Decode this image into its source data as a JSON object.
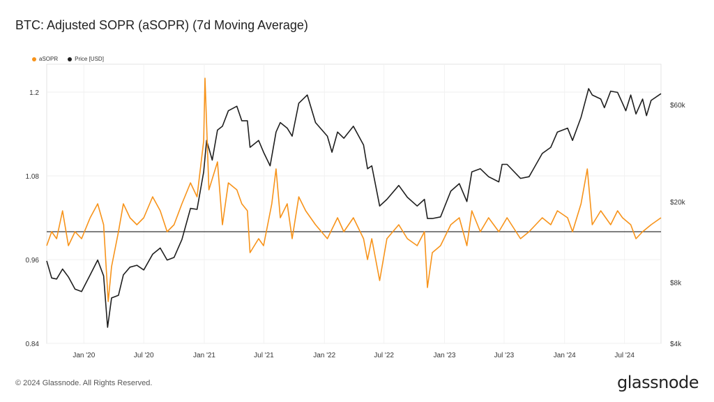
{
  "header": {
    "title": "BTC: Adjusted SOPR (aSOPR) (7d Moving Average)"
  },
  "legend": [
    {
      "label": "aSOPR",
      "color": "#f7931a"
    },
    {
      "label": "Price [USD]",
      "color": "#1e1e1e"
    }
  ],
  "footer": {
    "copyright": "© 2024 Glassnode. All Rights Reserved.",
    "brand": "glassnode"
  },
  "chart_data": {
    "type": "line",
    "title": "BTC: Adjusted SOPR (aSOPR) (7d Moving Average)",
    "x_tick_labels": [
      "Jan '20",
      "Jul '20",
      "Jan '21",
      "Jul '21",
      "Jan '22",
      "Jul '22",
      "Jan '23",
      "Jul '23",
      "Jan '24",
      "Jul '24"
    ],
    "x_tick_dates": [
      "2020-01-01",
      "2020-07-01",
      "2021-01-01",
      "2021-07-01",
      "2022-01-01",
      "2022-07-01",
      "2023-01-01",
      "2023-07-01",
      "2024-01-01",
      "2024-07-01"
    ],
    "xlim": [
      "2019-09-10",
      "2024-10-20"
    ],
    "y_left": {
      "ylim": [
        0.84,
        1.24
      ],
      "ticks": [
        0.84,
        0.96,
        1.08,
        1.2
      ],
      "tick_labels": [
        "0.84",
        "0.96",
        "1.08",
        "1.2"
      ]
    },
    "y_right": {
      "scale": "log",
      "ylim": [
        4000,
        95000
      ],
      "ticks": [
        4000,
        8000,
        20000,
        60000
      ],
      "tick_labels": [
        "$4k",
        "$8k",
        "$20k",
        "$60k"
      ]
    },
    "reference_line": {
      "axis": "left",
      "y": 1.0,
      "color": "#333333"
    },
    "grid": true,
    "legend_position": "top-left",
    "series": [
      {
        "name": "aSOPR",
        "axis": "left",
        "color": "#f7931a",
        "points": [
          [
            "2019-09-10",
            0.98
          ],
          [
            "2019-09-25",
            1.0
          ],
          [
            "2019-10-10",
            0.99
          ],
          [
            "2019-10-28",
            1.03
          ],
          [
            "2019-11-15",
            0.98
          ],
          [
            "2019-12-05",
            1.0
          ],
          [
            "2019-12-25",
            0.99
          ],
          [
            "2020-01-20",
            1.02
          ],
          [
            "2020-02-12",
            1.04
          ],
          [
            "2020-03-01",
            1.01
          ],
          [
            "2020-03-15",
            0.9
          ],
          [
            "2020-03-25",
            0.95
          ],
          [
            "2020-04-15",
            1.0
          ],
          [
            "2020-04-30",
            1.04
          ],
          [
            "2020-05-20",
            1.02
          ],
          [
            "2020-06-10",
            1.01
          ],
          [
            "2020-07-01",
            1.02
          ],
          [
            "2020-07-28",
            1.05
          ],
          [
            "2020-08-20",
            1.03
          ],
          [
            "2020-09-10",
            1.0
          ],
          [
            "2020-10-01",
            1.01
          ],
          [
            "2020-10-25",
            1.04
          ],
          [
            "2020-11-20",
            1.07
          ],
          [
            "2020-12-10",
            1.05
          ],
          [
            "2020-12-30",
            1.13
          ],
          [
            "2021-01-03",
            1.22
          ],
          [
            "2021-01-15",
            1.06
          ],
          [
            "2021-02-10",
            1.1
          ],
          [
            "2021-02-25",
            1.01
          ],
          [
            "2021-03-15",
            1.07
          ],
          [
            "2021-04-10",
            1.06
          ],
          [
            "2021-04-25",
            1.04
          ],
          [
            "2021-05-12",
            1.03
          ],
          [
            "2021-05-20",
            0.97
          ],
          [
            "2021-06-15",
            0.99
          ],
          [
            "2021-06-30",
            0.98
          ],
          [
            "2021-07-25",
            1.04
          ],
          [
            "2021-08-07",
            1.09
          ],
          [
            "2021-08-20",
            1.02
          ],
          [
            "2021-09-10",
            1.04
          ],
          [
            "2021-09-25",
            0.99
          ],
          [
            "2021-10-15",
            1.05
          ],
          [
            "2021-11-05",
            1.03
          ],
          [
            "2021-12-05",
            1.01
          ],
          [
            "2022-01-10",
            0.99
          ],
          [
            "2022-02-10",
            1.02
          ],
          [
            "2022-03-01",
            1.0
          ],
          [
            "2022-03-30",
            1.02
          ],
          [
            "2022-04-30",
            0.99
          ],
          [
            "2022-05-12",
            0.96
          ],
          [
            "2022-05-25",
            0.99
          ],
          [
            "2022-06-18",
            0.93
          ],
          [
            "2022-07-10",
            0.99
          ],
          [
            "2022-08-15",
            1.01
          ],
          [
            "2022-09-10",
            0.99
          ],
          [
            "2022-10-10",
            0.98
          ],
          [
            "2022-11-01",
            1.0
          ],
          [
            "2022-11-10",
            0.92
          ],
          [
            "2022-11-25",
            0.97
          ],
          [
            "2022-12-20",
            0.98
          ],
          [
            "2023-01-20",
            1.01
          ],
          [
            "2023-02-15",
            1.02
          ],
          [
            "2023-03-10",
            0.98
          ],
          [
            "2023-03-25",
            1.03
          ],
          [
            "2023-04-20",
            1.0
          ],
          [
            "2023-05-15",
            1.02
          ],
          [
            "2023-06-15",
            1.0
          ],
          [
            "2023-07-10",
            1.02
          ],
          [
            "2023-08-20",
            0.99
          ],
          [
            "2023-09-15",
            1.0
          ],
          [
            "2023-10-25",
            1.02
          ],
          [
            "2023-11-20",
            1.01
          ],
          [
            "2023-12-10",
            1.03
          ],
          [
            "2024-01-10",
            1.02
          ],
          [
            "2024-01-25",
            1.0
          ],
          [
            "2024-02-20",
            1.04
          ],
          [
            "2024-03-10",
            1.09
          ],
          [
            "2024-03-25",
            1.01
          ],
          [
            "2024-04-20",
            1.03
          ],
          [
            "2024-05-20",
            1.01
          ],
          [
            "2024-06-10",
            1.03
          ],
          [
            "2024-06-25",
            1.02
          ],
          [
            "2024-07-20",
            1.01
          ],
          [
            "2024-08-05",
            0.99
          ],
          [
            "2024-08-25",
            1.0
          ],
          [
            "2024-09-20",
            1.01
          ],
          [
            "2024-10-20",
            1.02
          ]
        ]
      },
      {
        "name": "Price [USD]",
        "axis": "right",
        "color": "#1e1e1e",
        "points": [
          [
            "2019-09-10",
            10200
          ],
          [
            "2019-09-25",
            8400
          ],
          [
            "2019-10-10",
            8300
          ],
          [
            "2019-10-28",
            9300
          ],
          [
            "2019-11-15",
            8500
          ],
          [
            "2019-12-05",
            7400
          ],
          [
            "2019-12-25",
            7200
          ],
          [
            "2020-01-20",
            8700
          ],
          [
            "2020-02-12",
            10300
          ],
          [
            "2020-03-01",
            8600
          ],
          [
            "2020-03-13",
            4800
          ],
          [
            "2020-03-25",
            6700
          ],
          [
            "2020-04-15",
            6900
          ],
          [
            "2020-04-30",
            8700
          ],
          [
            "2020-05-20",
            9500
          ],
          [
            "2020-06-10",
            9700
          ],
          [
            "2020-07-01",
            9200
          ],
          [
            "2020-07-28",
            11000
          ],
          [
            "2020-08-20",
            11800
          ],
          [
            "2020-09-10",
            10300
          ],
          [
            "2020-10-01",
            10600
          ],
          [
            "2020-10-25",
            13000
          ],
          [
            "2020-11-20",
            18500
          ],
          [
            "2020-12-10",
            18300
          ],
          [
            "2020-12-30",
            28000
          ],
          [
            "2021-01-08",
            40000
          ],
          [
            "2021-01-25",
            32000
          ],
          [
            "2021-02-10",
            45000
          ],
          [
            "2021-02-25",
            47000
          ],
          [
            "2021-03-15",
            56000
          ],
          [
            "2021-04-10",
            59000
          ],
          [
            "2021-04-25",
            50000
          ],
          [
            "2021-05-12",
            50000
          ],
          [
            "2021-05-20",
            37000
          ],
          [
            "2021-06-15",
            40000
          ],
          [
            "2021-06-30",
            35000
          ],
          [
            "2021-07-20",
            30000
          ],
          [
            "2021-08-07",
            44000
          ],
          [
            "2021-08-20",
            49000
          ],
          [
            "2021-09-10",
            46000
          ],
          [
            "2021-09-25",
            42000
          ],
          [
            "2021-10-15",
            61000
          ],
          [
            "2021-11-10",
            67000
          ],
          [
            "2021-12-05",
            49000
          ],
          [
            "2022-01-10",
            42000
          ],
          [
            "2022-01-24",
            35000
          ],
          [
            "2022-02-10",
            44000
          ],
          [
            "2022-03-01",
            41000
          ],
          [
            "2022-03-30",
            47000
          ],
          [
            "2022-04-30",
            38000
          ],
          [
            "2022-05-12",
            29000
          ],
          [
            "2022-05-25",
            30000
          ],
          [
            "2022-06-18",
            19000
          ],
          [
            "2022-07-10",
            20500
          ],
          [
            "2022-08-15",
            24000
          ],
          [
            "2022-09-10",
            21000
          ],
          [
            "2022-10-10",
            19000
          ],
          [
            "2022-11-01",
            20500
          ],
          [
            "2022-11-10",
            16500
          ],
          [
            "2022-11-25",
            16500
          ],
          [
            "2022-12-20",
            16800
          ],
          [
            "2023-01-20",
            22500
          ],
          [
            "2023-02-15",
            24500
          ],
          [
            "2023-03-10",
            20000
          ],
          [
            "2023-03-25",
            28000
          ],
          [
            "2023-04-20",
            29000
          ],
          [
            "2023-05-15",
            26500
          ],
          [
            "2023-06-15",
            25000
          ],
          [
            "2023-06-25",
            30500
          ],
          [
            "2023-07-10",
            30500
          ],
          [
            "2023-08-20",
            26000
          ],
          [
            "2023-09-15",
            26500
          ],
          [
            "2023-10-25",
            34500
          ],
          [
            "2023-11-20",
            37000
          ],
          [
            "2023-12-10",
            44000
          ],
          [
            "2024-01-10",
            46000
          ],
          [
            "2024-01-25",
            40000
          ],
          [
            "2024-02-20",
            52000
          ],
          [
            "2024-03-14",
            72000
          ],
          [
            "2024-03-25",
            67000
          ],
          [
            "2024-04-20",
            64000
          ],
          [
            "2024-05-01",
            58000
          ],
          [
            "2024-05-20",
            70000
          ],
          [
            "2024-06-10",
            69000
          ],
          [
            "2024-06-25",
            61000
          ],
          [
            "2024-07-05",
            56000
          ],
          [
            "2024-07-20",
            67000
          ],
          [
            "2024-08-05",
            54000
          ],
          [
            "2024-08-25",
            64000
          ],
          [
            "2024-09-06",
            53000
          ],
          [
            "2024-09-20",
            63000
          ],
          [
            "2024-10-20",
            68000
          ]
        ]
      }
    ]
  }
}
